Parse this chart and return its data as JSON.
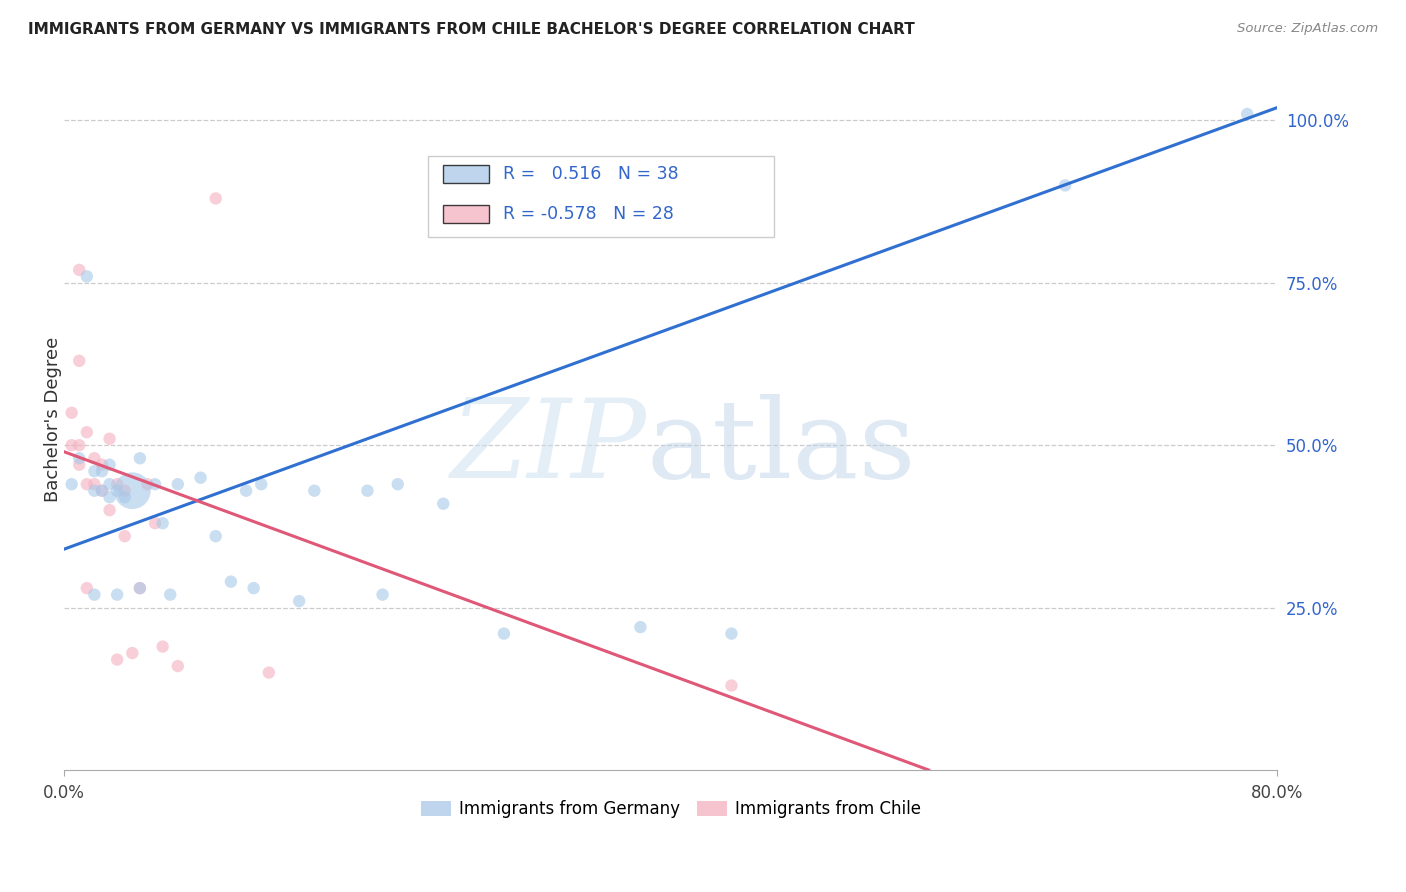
{
  "title": "IMMIGRANTS FROM GERMANY VS IMMIGRANTS FROM CHILE BACHELOR'S DEGREE CORRELATION CHART",
  "source": "Source: ZipAtlas.com",
  "ylabel": "Bachelor's Degree",
  "xlim": [
    0.0,
    0.8
  ],
  "ylim": [
    0.0,
    1.08
  ],
  "y_ticks": [
    0.25,
    0.5,
    0.75,
    1.0
  ],
  "y_tick_labels": [
    "25.0%",
    "50.0%",
    "75.0%",
    "100.0%"
  ],
  "germany_R": 0.516,
  "germany_N": 38,
  "chile_R": -0.578,
  "chile_N": 28,
  "germany_color": "#a8c8e8",
  "chile_color": "#f4b0c0",
  "germany_line_color": "#3070d0",
  "chile_line_color": "#e05878",
  "germany_line_x": [
    0.0,
    0.8
  ],
  "germany_line_y": [
    0.34,
    1.02
  ],
  "chile_line_x": [
    0.0,
    0.57
  ],
  "chile_line_y": [
    0.49,
    0.0
  ],
  "germany_x": [
    0.005,
    0.01,
    0.015,
    0.02,
    0.02,
    0.02,
    0.025,
    0.025,
    0.03,
    0.03,
    0.03,
    0.035,
    0.035,
    0.04,
    0.045,
    0.05,
    0.05,
    0.06,
    0.065,
    0.07,
    0.075,
    0.09,
    0.1,
    0.11,
    0.12,
    0.125,
    0.13,
    0.155,
    0.165,
    0.2,
    0.21,
    0.22,
    0.25,
    0.29,
    0.38,
    0.44,
    0.66,
    0.78
  ],
  "germany_y": [
    0.44,
    0.48,
    0.76,
    0.43,
    0.46,
    0.27,
    0.43,
    0.46,
    0.42,
    0.44,
    0.47,
    0.43,
    0.27,
    0.42,
    0.43,
    0.48,
    0.28,
    0.44,
    0.38,
    0.27,
    0.44,
    0.45,
    0.36,
    0.29,
    0.43,
    0.28,
    0.44,
    0.26,
    0.43,
    0.43,
    0.27,
    0.44,
    0.41,
    0.21,
    0.22,
    0.21,
    0.9,
    1.01
  ],
  "germany_sizes": [
    80,
    80,
    80,
    80,
    80,
    80,
    80,
    80,
    80,
    80,
    80,
    80,
    80,
    80,
    700,
    80,
    80,
    80,
    80,
    80,
    80,
    80,
    80,
    80,
    80,
    80,
    80,
    80,
    80,
    80,
    80,
    80,
    80,
    80,
    80,
    80,
    80,
    80
  ],
  "chile_x": [
    0.005,
    0.005,
    0.01,
    0.01,
    0.01,
    0.01,
    0.015,
    0.015,
    0.015,
    0.02,
    0.02,
    0.025,
    0.025,
    0.03,
    0.03,
    0.035,
    0.035,
    0.04,
    0.04,
    0.045,
    0.05,
    0.055,
    0.06,
    0.065,
    0.075,
    0.1,
    0.135,
    0.44
  ],
  "chile_y": [
    0.55,
    0.5,
    0.63,
    0.77,
    0.5,
    0.47,
    0.52,
    0.44,
    0.28,
    0.48,
    0.44,
    0.47,
    0.43,
    0.51,
    0.4,
    0.44,
    0.17,
    0.43,
    0.36,
    0.18,
    0.28,
    0.44,
    0.38,
    0.19,
    0.16,
    0.88,
    0.15,
    0.13
  ],
  "chile_sizes": [
    80,
    80,
    80,
    80,
    80,
    80,
    80,
    80,
    80,
    80,
    80,
    80,
    80,
    80,
    80,
    80,
    80,
    80,
    80,
    80,
    80,
    80,
    80,
    80,
    80,
    80,
    80,
    80
  ]
}
